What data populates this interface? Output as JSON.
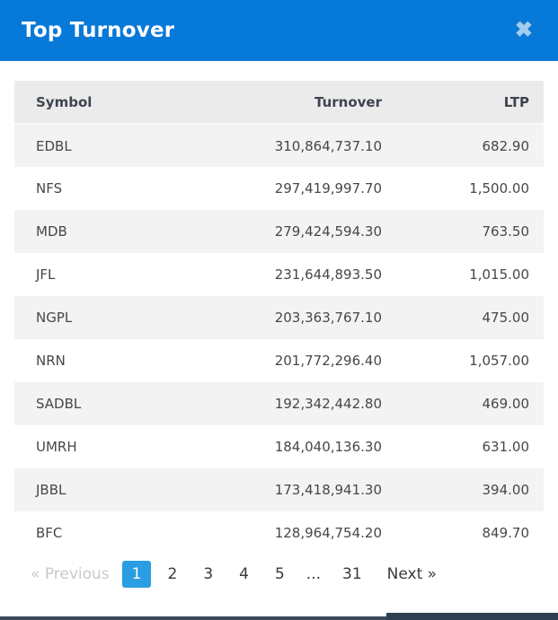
{
  "modal": {
    "title": "Top Turnover",
    "close_glyph": "✖"
  },
  "table": {
    "columns": [
      "Symbol",
      "Turnover",
      "LTP"
    ],
    "rows": [
      {
        "symbol": "EDBL",
        "turnover": "310,864,737.10",
        "ltp": "682.90"
      },
      {
        "symbol": "NFS",
        "turnover": "297,419,997.70",
        "ltp": "1,500.00"
      },
      {
        "symbol": "MDB",
        "turnover": "279,424,594.30",
        "ltp": "763.50"
      },
      {
        "symbol": "JFL",
        "turnover": "231,644,893.50",
        "ltp": "1,015.00"
      },
      {
        "symbol": "NGPL",
        "turnover": "203,363,767.10",
        "ltp": "475.00"
      },
      {
        "symbol": "NRN",
        "turnover": "201,772,296.40",
        "ltp": "1,057.00"
      },
      {
        "symbol": "SADBL",
        "turnover": "192,342,442.80",
        "ltp": "469.00"
      },
      {
        "symbol": "UMRH",
        "turnover": "184,040,136.30",
        "ltp": "631.00"
      },
      {
        "symbol": "JBBL",
        "turnover": "173,418,941.30",
        "ltp": "394.00"
      },
      {
        "symbol": "BFC",
        "turnover": "128,964,754.20",
        "ltp": "849.70"
      }
    ]
  },
  "pagination": {
    "prev_arrow": "«",
    "prev_label": "Previous",
    "pages": [
      "1",
      "2",
      "3",
      "4",
      "5",
      "...",
      "31"
    ],
    "active_page": "1",
    "next_label": "Next",
    "next_arrow": "»"
  },
  "colors": {
    "header_blue": "#0779d9",
    "active_page_blue": "#2b9de2",
    "close_icon_blue": "#a3cbee",
    "table_header_bg": "#ebebeb",
    "row_stripe_bg": "#f3f3f3"
  }
}
